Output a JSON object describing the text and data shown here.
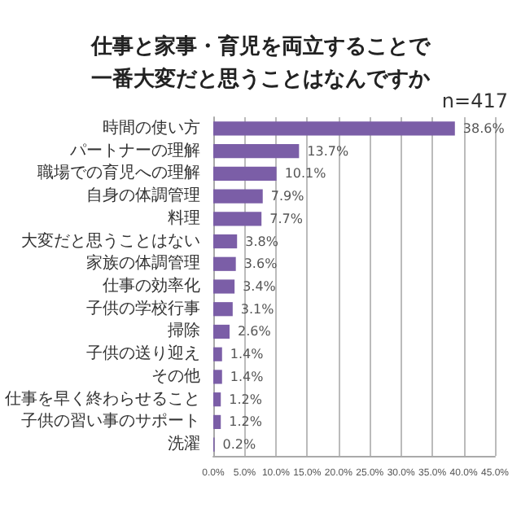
{
  "chart_data": {
    "type": "bar",
    "orientation": "horizontal",
    "title": "仕事と家事・育児を両立することで一番大変だと思うことはなんですか",
    "annotations": [
      "n=417"
    ],
    "categories": [
      "時間の使い方",
      "パートナーの理解",
      "職場での育児への理解",
      "自身の体調管理",
      "料理",
      "大変だと思うことはない",
      "家族の体調管理",
      "仕事の効率化",
      "子供の学校行事",
      "掃除",
      "子供の送り迎え",
      "その他",
      "仕事を早く終わらせること",
      "子供の習い事のサポート",
      "洗濯"
    ],
    "values": [
      38.6,
      13.7,
      10.1,
      7.9,
      7.7,
      3.8,
      3.6,
      3.4,
      3.1,
      2.6,
      1.4,
      1.4,
      1.2,
      1.2,
      0.2
    ],
    "value_labels": [
      "38.6%",
      "13.7%",
      "10.1%",
      "7.9%",
      "7.7%",
      "3.8%",
      "3.6%",
      "3.4%",
      "3.1%",
      "2.6%",
      "1.4%",
      "1.4%",
      "1.2%",
      "1.2%",
      "0.2%"
    ],
    "color": "#7b5ea7",
    "xlim": [
      0,
      45
    ],
    "xticks": [
      {
        "value": 0,
        "label": "0.0%"
      },
      {
        "value": 5,
        "label": "5.0%"
      },
      {
        "value": 10,
        "label": "10.0%"
      },
      {
        "value": 15,
        "label": "15.0%"
      },
      {
        "value": 20,
        "label": "20.0%"
      },
      {
        "value": 25,
        "label": "25.0%"
      },
      {
        "value": 30,
        "label": "30.0%"
      },
      {
        "value": 35,
        "label": "35.0%"
      },
      {
        "value": 40,
        "label": "40.0%"
      },
      {
        "value": 45,
        "label": "45.0%"
      }
    ],
    "grid": "x"
  }
}
